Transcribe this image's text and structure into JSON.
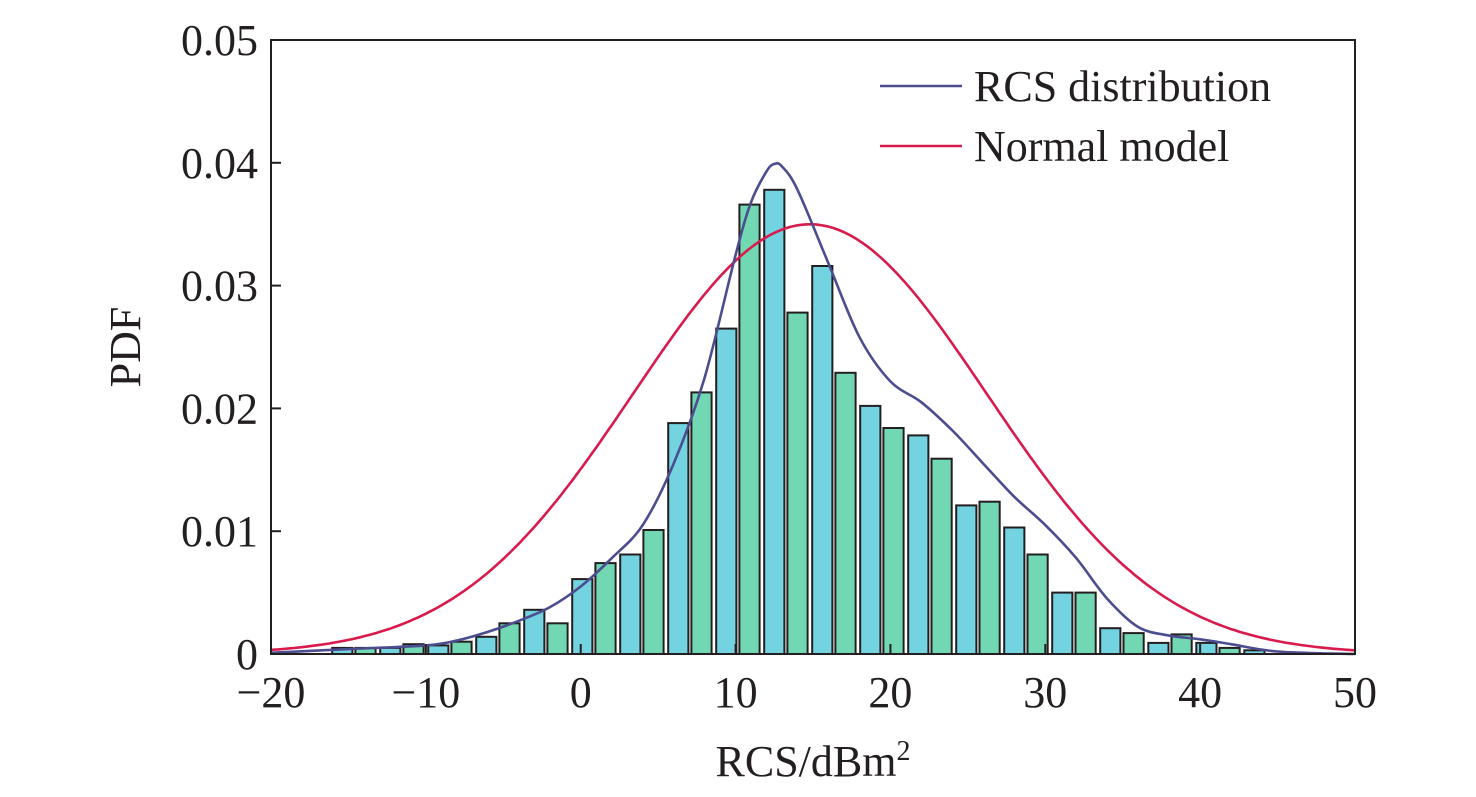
{
  "chart_data": {
    "type": "bar",
    "xlabel": "RCS/dBm",
    "xlabel_superscript": "2",
    "ylabel": "PDF",
    "xlim": [
      -20,
      50
    ],
    "ylim": [
      0,
      0.05
    ],
    "xticks": [
      -20,
      -10,
      0,
      10,
      20,
      30,
      40,
      50
    ],
    "xtick_labels": [
      "−20",
      "−10",
      "0",
      "10",
      "20",
      "30",
      "40",
      "50"
    ],
    "yticks": [
      0,
      0.01,
      0.02,
      0.03,
      0.04,
      0.05
    ],
    "ytick_labels": [
      "0",
      "0.01",
      "0.02",
      "0.03",
      "0.04",
      "0.05"
    ],
    "grid": false,
    "legend_position": "top-right",
    "bar_colors": [
      "#74d3e1",
      "#72d8b4"
    ],
    "histogram": {
      "bin_width": 1.55,
      "centers": [
        -15.4,
        -13.9,
        -12.3,
        -10.8,
        -9.2,
        -7.7,
        -6.1,
        -4.6,
        -3.0,
        -1.5,
        0.1,
        1.6,
        3.2,
        4.7,
        6.3,
        7.8,
        9.4,
        10.9,
        12.5,
        14.0,
        15.6,
        17.1,
        18.7,
        20.2,
        21.8,
        23.3,
        24.9,
        26.4,
        28.0,
        29.5,
        31.1,
        32.6,
        34.2,
        35.7,
        37.3,
        38.8,
        40.4,
        41.9,
        43.5
      ],
      "values": [
        0.0005,
        0.0005,
        0.0005,
        0.0008,
        0.0007,
        0.001,
        0.0014,
        0.0025,
        0.0036,
        0.0025,
        0.0061,
        0.0074,
        0.0081,
        0.0101,
        0.0188,
        0.0213,
        0.0265,
        0.0366,
        0.0378,
        0.0278,
        0.0316,
        0.0229,
        0.0202,
        0.0184,
        0.0178,
        0.0159,
        0.0121,
        0.0124,
        0.0103,
        0.0081,
        0.005,
        0.005,
        0.0021,
        0.0017,
        0.0009,
        0.0016,
        0.0009,
        0.0005,
        0.0003
      ]
    },
    "series": [
      {
        "name": "RCS distribution",
        "color": "#4b4d8f",
        "x": [
          -20,
          -15,
          -10,
          -8,
          -6,
          -4,
          -2,
          0,
          2,
          4,
          6,
          8,
          10,
          11,
          12,
          12.5,
          13,
          14,
          16,
          18,
          20,
          22,
          24,
          26,
          28,
          30,
          32,
          34,
          36,
          38,
          40,
          42,
          45,
          50
        ],
        "y": [
          0.0001,
          0.0004,
          0.0007,
          0.0011,
          0.0018,
          0.0027,
          0.0038,
          0.0055,
          0.0078,
          0.0105,
          0.0155,
          0.0225,
          0.0325,
          0.0368,
          0.0393,
          0.0399,
          0.0397,
          0.0378,
          0.0318,
          0.0258,
          0.0222,
          0.0205,
          0.0182,
          0.0155,
          0.0128,
          0.0105,
          0.0078,
          0.0045,
          0.0022,
          0.0015,
          0.0012,
          0.0008,
          0.0002,
          0.0
        ]
      },
      {
        "name": "Normal model",
        "color": "#d81b4c",
        "mean": 14.8,
        "std": 11.4
      }
    ]
  }
}
